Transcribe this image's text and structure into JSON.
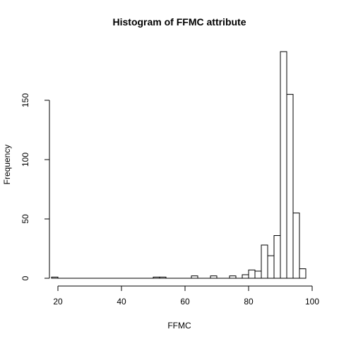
{
  "chart_data": {
    "type": "bar",
    "title": "Histogram of FFMC attribute",
    "xlabel": "FFMC",
    "ylabel": "Frequency",
    "xlim": [
      18,
      98
    ],
    "ylim": [
      0,
      200
    ],
    "x_ticks": [
      20,
      40,
      60,
      80,
      100
    ],
    "y_ticks": [
      0,
      50,
      100,
      150
    ],
    "bin_width": 2,
    "bins": [
      {
        "start": 18,
        "end": 20,
        "count": 1
      },
      {
        "start": 50,
        "end": 52,
        "count": 1
      },
      {
        "start": 52,
        "end": 54,
        "count": 1
      },
      {
        "start": 62,
        "end": 64,
        "count": 2
      },
      {
        "start": 68,
        "end": 70,
        "count": 2
      },
      {
        "start": 74,
        "end": 76,
        "count": 2
      },
      {
        "start": 78,
        "end": 80,
        "count": 3
      },
      {
        "start": 80,
        "end": 82,
        "count": 7
      },
      {
        "start": 82,
        "end": 84,
        "count": 6
      },
      {
        "start": 84,
        "end": 86,
        "count": 28
      },
      {
        "start": 86,
        "end": 88,
        "count": 19
      },
      {
        "start": 88,
        "end": 90,
        "count": 36
      },
      {
        "start": 90,
        "end": 92,
        "count": 191
      },
      {
        "start": 92,
        "end": 94,
        "count": 155
      },
      {
        "start": 94,
        "end": 96,
        "count": 55
      },
      {
        "start": 96,
        "end": 98,
        "count": 8
      }
    ],
    "grid": false,
    "bar_fill": "#ffffff",
    "bar_stroke": "#000000"
  }
}
